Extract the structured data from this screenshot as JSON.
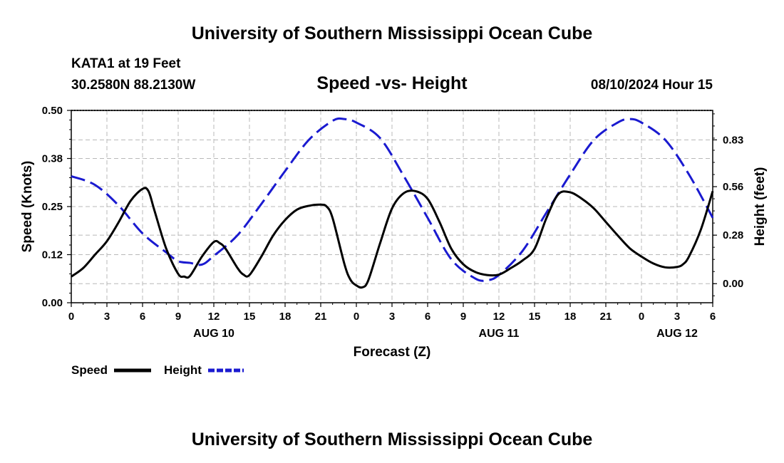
{
  "header": {
    "title": "University of Southern Mississippi Ocean Cube",
    "station": "KATA1 at 19 Feet",
    "coords": "30.2580N  88.2130W",
    "subtitle": "Speed -vs- Height",
    "datetime": "08/10/2024 Hour 15"
  },
  "footer": {
    "title": "University of Southern Mississippi Ocean Cube"
  },
  "chart_data": {
    "type": "line",
    "title": "Speed -vs- Height",
    "xlabel": "Forecast (Z)",
    "ylabel": "Speed (Knots)",
    "y2label": "Height (feet)",
    "grid": true,
    "legend_position": "bottom-left",
    "x_range": [
      0,
      54
    ],
    "x_ticks": [
      {
        "x": 0,
        "label": "0"
      },
      {
        "x": 3,
        "label": "3"
      },
      {
        "x": 6,
        "label": "6"
      },
      {
        "x": 9,
        "label": "9"
      },
      {
        "x": 12,
        "label": "12"
      },
      {
        "x": 15,
        "label": "15"
      },
      {
        "x": 18,
        "label": "18"
      },
      {
        "x": 21,
        "label": "21"
      },
      {
        "x": 24,
        "label": "0"
      },
      {
        "x": 27,
        "label": "3"
      },
      {
        "x": 30,
        "label": "6"
      },
      {
        "x": 33,
        "label": "9"
      },
      {
        "x": 36,
        "label": "12"
      },
      {
        "x": 39,
        "label": "15"
      },
      {
        "x": 42,
        "label": "18"
      },
      {
        "x": 45,
        "label": "21"
      },
      {
        "x": 48,
        "label": "0"
      },
      {
        "x": 51,
        "label": "3"
      },
      {
        "x": 54,
        "label": "6"
      }
    ],
    "date_labels": [
      {
        "x": 12,
        "label": "AUG 10"
      },
      {
        "x": 36,
        "label": "AUG 11"
      },
      {
        "x": 51,
        "label": "AUG 12"
      }
    ],
    "y_left": {
      "min": 0,
      "max": 0.5,
      "ticks": [
        {
          "v": 0,
          "label": "0.00"
        },
        {
          "v": 0.125,
          "label": "0.12"
        },
        {
          "v": 0.25,
          "label": "0.25"
        },
        {
          "v": 0.375,
          "label": "0.38"
        },
        {
          "v": 0.5,
          "label": "0.50"
        }
      ]
    },
    "y_right": {
      "min": -0.11,
      "max": 1.0,
      "ticks": [
        {
          "v": 0,
          "label": "0.00"
        },
        {
          "v": 0.28,
          "label": "0.28"
        },
        {
          "v": 0.56,
          "label": "0.56"
        },
        {
          "v": 0.83,
          "label": "0.83"
        }
      ]
    },
    "series": [
      {
        "name": "Speed",
        "axis": "left",
        "color": "#000000",
        "dash": "solid",
        "x": [
          0,
          1,
          2,
          3,
          4,
          5,
          6,
          6.5,
          7,
          8,
          9,
          9.5,
          10,
          11,
          12,
          12.5,
          13,
          14,
          14.5,
          15,
          16,
          17,
          18,
          19,
          20,
          21,
          21.5,
          22,
          23,
          23.5,
          24,
          24.5,
          25,
          26,
          27,
          28,
          29,
          30,
          31,
          32,
          33,
          34,
          35,
          36,
          37,
          38,
          39,
          40,
          41,
          42,
          43,
          44,
          45,
          46,
          47,
          48,
          49,
          50,
          51,
          51.5,
          52,
          53,
          54
        ],
        "values": [
          0.068,
          0.09,
          0.125,
          0.16,
          0.21,
          0.265,
          0.296,
          0.29,
          0.24,
          0.14,
          0.075,
          0.068,
          0.07,
          0.12,
          0.158,
          0.155,
          0.14,
          0.09,
          0.073,
          0.072,
          0.12,
          0.175,
          0.215,
          0.242,
          0.252,
          0.255,
          0.25,
          0.22,
          0.1,
          0.06,
          0.045,
          0.04,
          0.058,
          0.155,
          0.245,
          0.285,
          0.29,
          0.27,
          0.21,
          0.14,
          0.1,
          0.08,
          0.072,
          0.073,
          0.09,
          0.11,
          0.14,
          0.22,
          0.282,
          0.287,
          0.27,
          0.245,
          0.21,
          0.175,
          0.142,
          0.12,
          0.102,
          0.092,
          0.093,
          0.1,
          0.12,
          0.19,
          0.29
        ]
      },
      {
        "name": "Height",
        "axis": "right",
        "color": "#1a1ad0",
        "dash": "dashed",
        "x": [
          0,
          2,
          4,
          6,
          8,
          9,
          10,
          11,
          12,
          14,
          16,
          18,
          20,
          22,
          23,
          24,
          26,
          28,
          30,
          32,
          34,
          35,
          36,
          38,
          40,
          42,
          44,
          46,
          47,
          48,
          50,
          52,
          54
        ],
        "values": [
          0.62,
          0.57,
          0.45,
          0.29,
          0.18,
          0.13,
          0.12,
          0.11,
          0.16,
          0.28,
          0.46,
          0.65,
          0.83,
          0.94,
          0.95,
          0.93,
          0.84,
          0.62,
          0.38,
          0.14,
          0.03,
          0.02,
          0.05,
          0.19,
          0.41,
          0.63,
          0.83,
          0.93,
          0.95,
          0.93,
          0.83,
          0.63,
          0.38
        ]
      }
    ]
  }
}
